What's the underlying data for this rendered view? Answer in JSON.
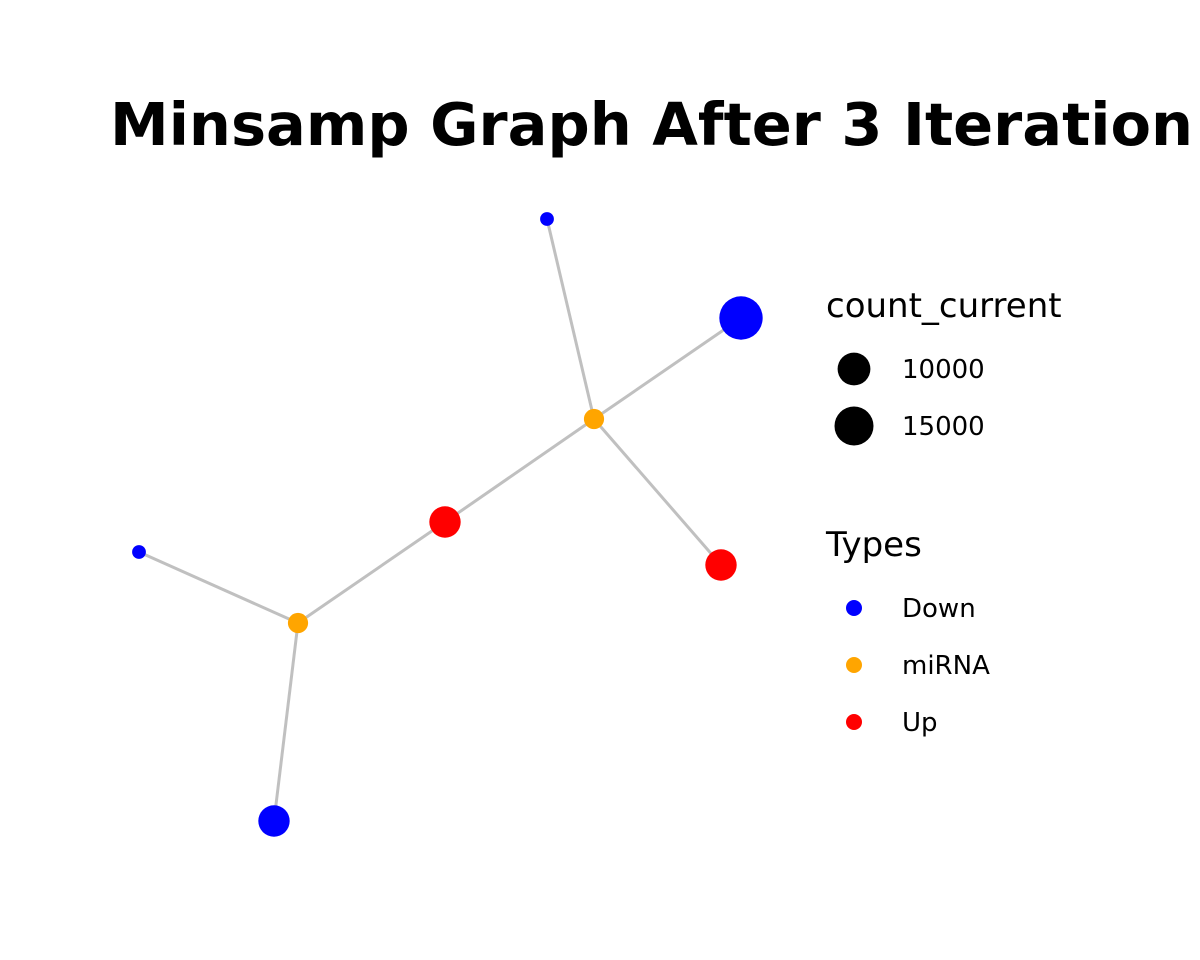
{
  "chart_data": {
    "type": "network",
    "title": "Minsamp Graph After 3 Iteration",
    "nodes": [
      {
        "id": "n1",
        "type": "Down",
        "count_current": 1000
      },
      {
        "id": "n2",
        "type": "Down",
        "count_current": 19000
      },
      {
        "id": "n3",
        "type": "miRNA",
        "count_current": 3000
      },
      {
        "id": "n4",
        "type": "Up",
        "count_current": 9000
      },
      {
        "id": "n5",
        "type": "Up",
        "count_current": 9000
      },
      {
        "id": "n6",
        "type": "Down",
        "count_current": 1000
      },
      {
        "id": "n7",
        "type": "miRNA",
        "count_current": 3000
      },
      {
        "id": "n8",
        "type": "Down",
        "count_current": 9000
      }
    ],
    "edges": [
      {
        "source": "n1",
        "target": "n3"
      },
      {
        "source": "n2",
        "target": "n3"
      },
      {
        "source": "n3",
        "target": "n4"
      },
      {
        "source": "n3",
        "target": "n5"
      },
      {
        "source": "n4",
        "target": "n7"
      },
      {
        "source": "n6",
        "target": "n7"
      },
      {
        "source": "n7",
        "target": "n8"
      }
    ],
    "size_legend": {
      "title": "count_current",
      "entries": [
        {
          "label": "10000",
          "value": 10000
        },
        {
          "label": "15000",
          "value": 15000
        }
      ]
    },
    "color_legend": {
      "title": "Types",
      "entries": [
        {
          "label": "Down",
          "color": "#0000ff"
        },
        {
          "label": "miRNA",
          "color": "#ffa500"
        },
        {
          "label": "Up",
          "color": "#ff0000"
        }
      ]
    },
    "edge_color": "#c0c0c0"
  }
}
